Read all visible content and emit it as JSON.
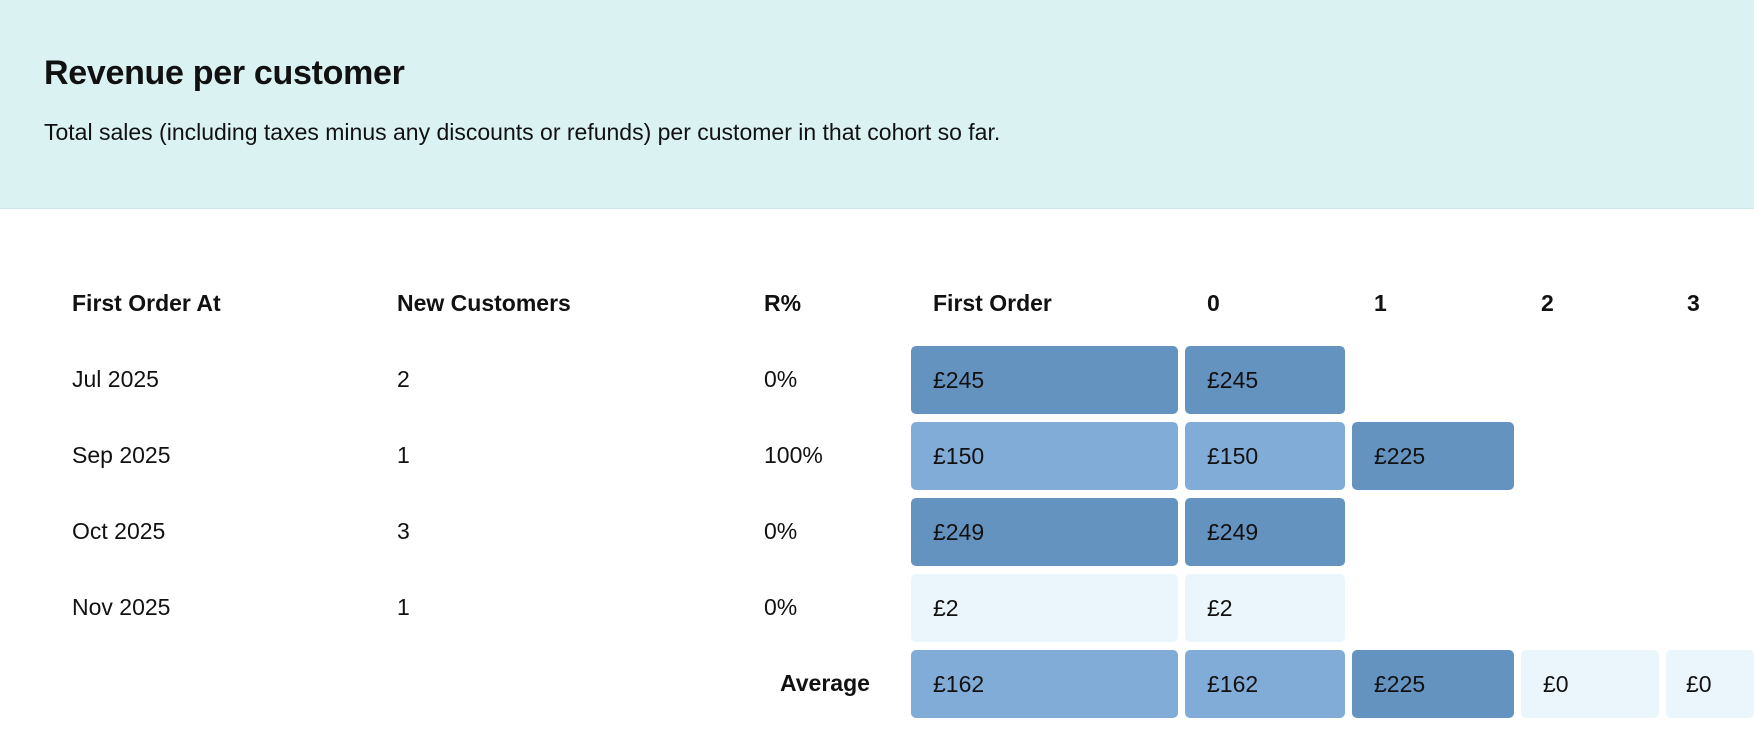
{
  "header": {
    "title": "Revenue per customer",
    "subtitle": "Total sales (including taxes minus any discounts or refunds) per customer in that cohort so far."
  },
  "columns": [
    "First Order At",
    "New Customers",
    "R%",
    "First Order",
    "0",
    "1",
    "2",
    "3"
  ],
  "rows": [
    {
      "first_order_at": "Jul 2025",
      "new_customers": "2",
      "r_pct": "0%",
      "first_order": "£245",
      "m0": "£245"
    },
    {
      "first_order_at": "Sep 2025",
      "new_customers": "1",
      "r_pct": "100%",
      "first_order": "£150",
      "m0": "£150",
      "m1": "£225"
    },
    {
      "first_order_at": "Oct 2025",
      "new_customers": "3",
      "r_pct": "0%",
      "first_order": "£249",
      "m0": "£249"
    },
    {
      "first_order_at": "Nov 2025",
      "new_customers": "1",
      "r_pct": "0%",
      "first_order": "£2",
      "m0": "£2"
    }
  ],
  "average": {
    "label": "Average",
    "first_order": "£162",
    "m0": "£162",
    "m1": "£225",
    "m2": "£0",
    "m3": "£0"
  },
  "colors": {
    "header_bg": "#dbf2f3",
    "dark": "#6593c0",
    "mid": "#82acd8",
    "light": "#ebf6fc"
  }
}
